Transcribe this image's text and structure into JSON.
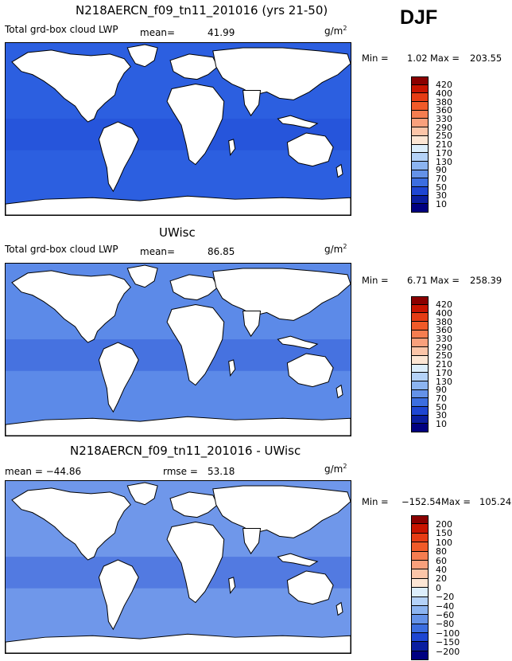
{
  "header": {
    "season": "DJF"
  },
  "panels": [
    {
      "title": "N218AERCN_f09_tn11_201016 (yrs 21-50)",
      "left_label": "Total grd-box cloud LWP",
      "stat_label": "mean=",
      "stat_value": "41.99",
      "units_base": "g/m",
      "units_exp": "2",
      "min_label": "Min =",
      "min_value": "1.02",
      "max_label": "Max =",
      "max_value": "203.55",
      "ocean_color": "#2c5fe0",
      "colorbar": {
        "labels": [
          "420",
          "400",
          "380",
          "360",
          "330",
          "290",
          "250",
          "210",
          "170",
          "130",
          "90",
          "70",
          "50",
          "30",
          "10"
        ],
        "colors": [
          "#8b0000",
          "#c81400",
          "#e63c14",
          "#f05a28",
          "#f57d50",
          "#f9a07c",
          "#fcc5a8",
          "#fde6d4",
          "#dceefc",
          "#b4d2f8",
          "#8cb4f0",
          "#6492e8",
          "#3c6ee0",
          "#1e46d2",
          "#0a1ea0",
          "#000080"
        ]
      }
    },
    {
      "title": "UWisc",
      "left_label": "Total grd-box cloud LWP",
      "stat_label": "mean=",
      "stat_value": "86.85",
      "units_base": "g/m",
      "units_exp": "2",
      "min_label": "Min =",
      "min_value": "6.71",
      "max_label": "Max =",
      "max_value": "258.39",
      "ocean_color": "#5c8ae8",
      "colorbar": {
        "labels": [
          "420",
          "400",
          "380",
          "360",
          "330",
          "290",
          "250",
          "210",
          "170",
          "130",
          "90",
          "70",
          "50",
          "30",
          "10"
        ],
        "colors": [
          "#8b0000",
          "#c81400",
          "#e63c14",
          "#f05a28",
          "#f57d50",
          "#f9a07c",
          "#fcc5a8",
          "#fde6d4",
          "#dceefc",
          "#b4d2f8",
          "#8cb4f0",
          "#6492e8",
          "#3c6ee0",
          "#1e46d2",
          "#0a1ea0",
          "#000080"
        ]
      }
    },
    {
      "title": "N218AERCN_f09_tn11_201016 - UWisc",
      "left_label": "mean = −44.86",
      "stat_label": "rmse =",
      "stat_value": "53.18",
      "units_base": "g/m",
      "units_exp": "2",
      "min_label": "Min =",
      "min_value": "−152.54",
      "max_label": "Max =",
      "max_value": "105.24",
      "ocean_color": "#6f97ea",
      "colorbar": {
        "labels": [
          "200",
          "150",
          "100",
          "80",
          "60",
          "40",
          "20",
          "0",
          "−20",
          "−40",
          "−60",
          "−80",
          "−100",
          "−150",
          "−200"
        ],
        "colors": [
          "#8b0000",
          "#c81400",
          "#e63c14",
          "#f05a28",
          "#f57d50",
          "#f9a07c",
          "#fcc5a8",
          "#fde6d4",
          "#dceefc",
          "#b4d2f8",
          "#8cb4f0",
          "#6492e8",
          "#3c6ee0",
          "#1e46d2",
          "#0a1ea0",
          "#000080"
        ]
      }
    }
  ],
  "chart_data": [
    {
      "type": "heatmap",
      "title": "N218AERCN_f09_tn11_201016 (yrs 21-50)",
      "variable": "Total grd-box cloud LWP",
      "units": "g/m2",
      "season": "DJF",
      "mean": 41.99,
      "min": 1.02,
      "max": 203.55,
      "levels": [
        10,
        30,
        50,
        70,
        90,
        130,
        170,
        210,
        250,
        290,
        330,
        360,
        380,
        400,
        420
      ]
    },
    {
      "type": "heatmap",
      "title": "UWisc",
      "variable": "Total grd-box cloud LWP",
      "units": "g/m2",
      "season": "DJF",
      "mean": 86.85,
      "min": 6.71,
      "max": 258.39,
      "levels": [
        10,
        30,
        50,
        70,
        90,
        130,
        170,
        210,
        250,
        290,
        330,
        360,
        380,
        400,
        420
      ]
    },
    {
      "type": "heatmap",
      "title": "N218AERCN_f09_tn11_201016 - UWisc",
      "units": "g/m2",
      "season": "DJF",
      "mean": -44.86,
      "rmse": 53.18,
      "min": -152.54,
      "max": 105.24,
      "levels": [
        -200,
        -150,
        -100,
        -80,
        -60,
        -40,
        -20,
        0,
        20,
        40,
        60,
        80,
        100,
        150,
        200
      ]
    }
  ]
}
